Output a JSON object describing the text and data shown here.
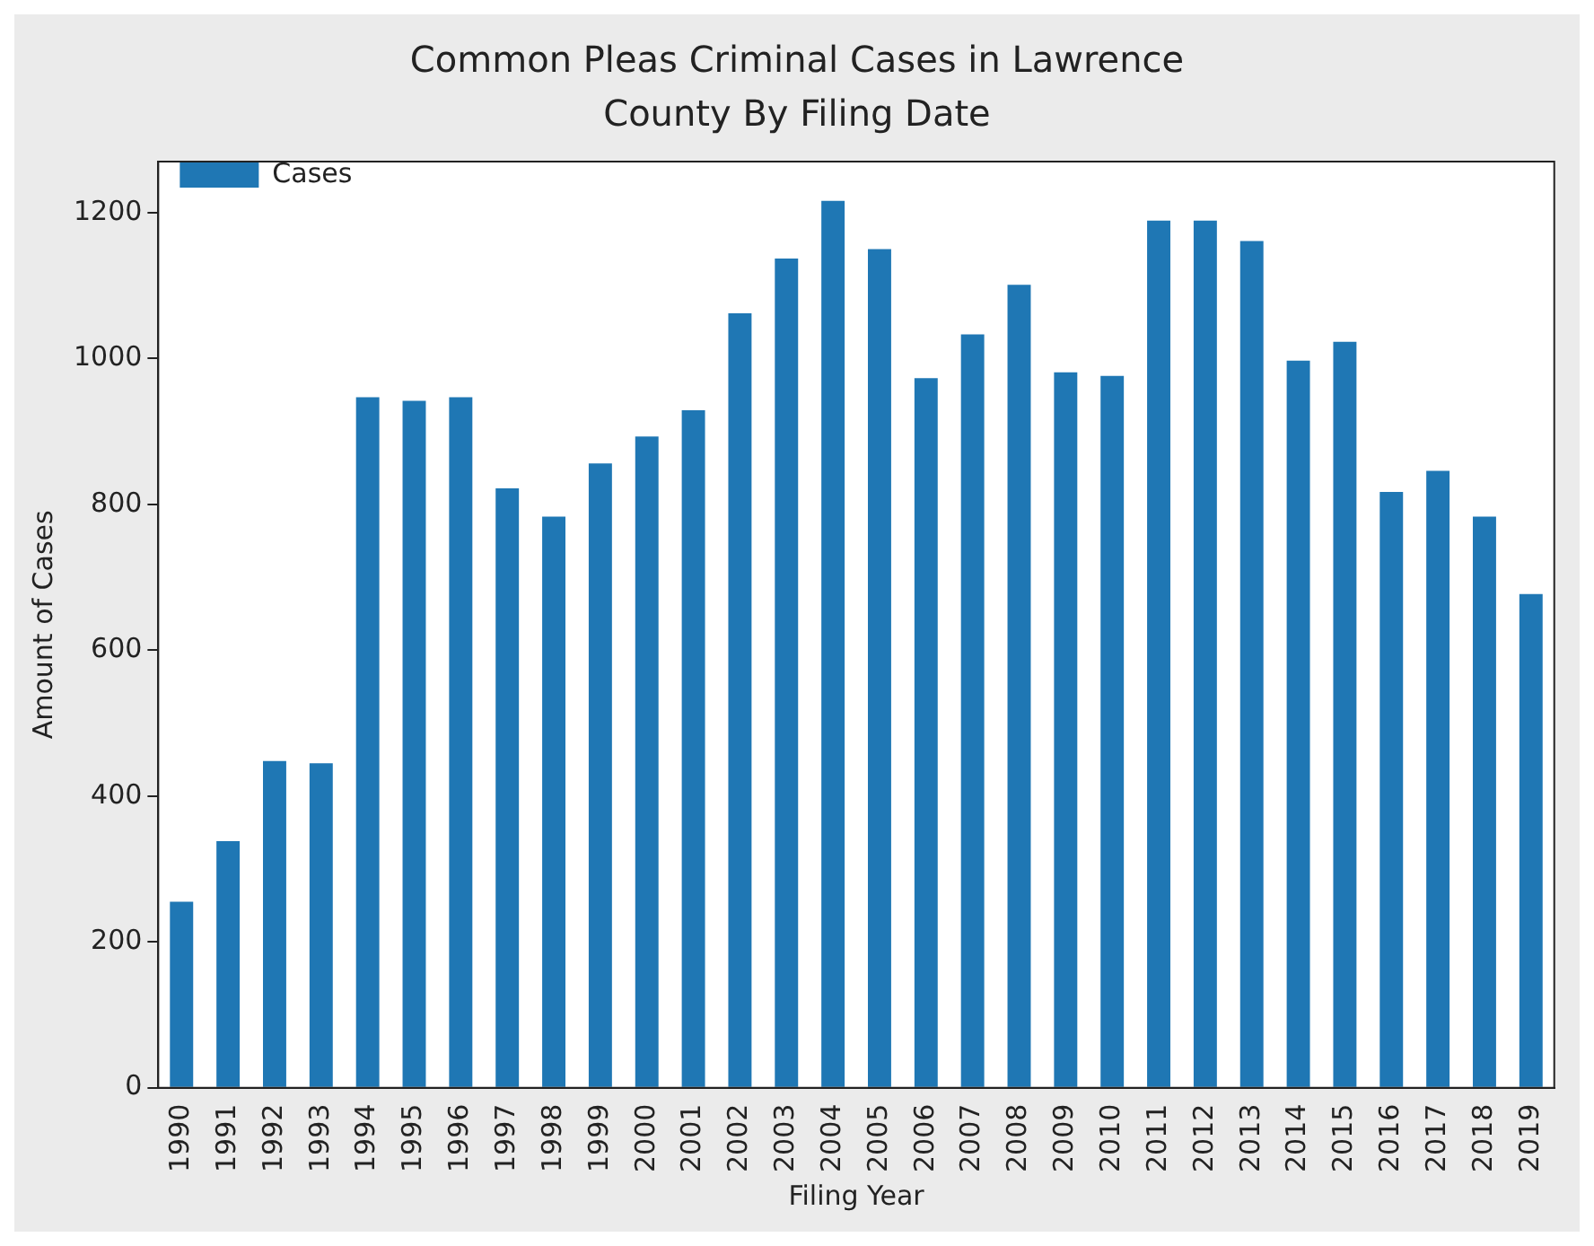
{
  "chart_data": {
    "type": "bar",
    "title": "Common Pleas Criminal Cases in Lawrence County By Filing Date",
    "xlabel": "Filing Year",
    "ylabel": "Amount of Cases",
    "categories": [
      "1990",
      "1991",
      "1992",
      "1993",
      "1994",
      "1995",
      "1996",
      "1997",
      "1998",
      "1999",
      "2000",
      "2001",
      "2002",
      "2003",
      "2004",
      "2005",
      "2006",
      "2007",
      "2008",
      "2009",
      "2010",
      "2011",
      "2012",
      "2013",
      "2014",
      "2015",
      "2016",
      "2017",
      "2018",
      "2019"
    ],
    "series": [
      {
        "name": "Cases",
        "color": "#1f77b4",
        "values": [
          255,
          338,
          448,
          445,
          947,
          942,
          947,
          822,
          783,
          856,
          893,
          929,
          1062,
          1137,
          1216,
          1150,
          973,
          1033,
          1101,
          981,
          976,
          1189,
          1189,
          1161,
          997,
          1023,
          817,
          846,
          783,
          677
        ]
      }
    ],
    "ylim": [
      0,
      1270
    ],
    "yticks": [
      0,
      200,
      400,
      600,
      800,
      1000,
      1200
    ],
    "grid": false,
    "legend": "top left"
  }
}
